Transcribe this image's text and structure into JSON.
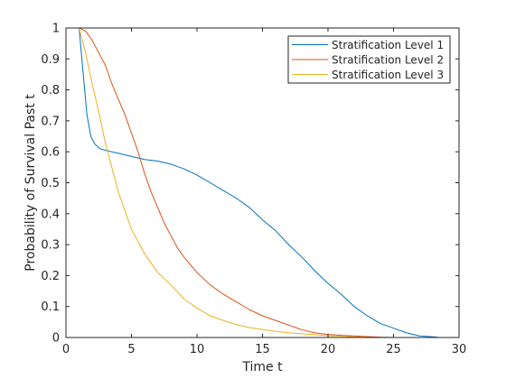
{
  "chart_data": {
    "type": "line",
    "title": "",
    "xlabel": "Time t",
    "ylabel": "Probability of Survival Past t",
    "xlim": [
      0,
      30
    ],
    "ylim": [
      0,
      1
    ],
    "xticks": [
      0,
      5,
      10,
      15,
      20,
      25,
      30
    ],
    "yticks": [
      0,
      0.1,
      0.2,
      0.3,
      0.4,
      0.5,
      0.6,
      0.7,
      0.8,
      0.9,
      1
    ],
    "xtick_labels": [
      "0",
      "5",
      "10",
      "15",
      "20",
      "25",
      "30"
    ],
    "ytick_labels": [
      "0",
      "0.1",
      "0.2",
      "0.3",
      "0.4",
      "0.5",
      "0.6",
      "0.7",
      "0.8",
      "0.9",
      "1"
    ],
    "grid": false,
    "legend": "top-right",
    "series": [
      {
        "name": "Stratification Level 1",
        "color": "#0072BD",
        "x": [
          1,
          1.3,
          1.6,
          1.9,
          2.2,
          2.6,
          3,
          4,
          5,
          6,
          7,
          8,
          9,
          10,
          11,
          12,
          13,
          14,
          15,
          16,
          17,
          18,
          19,
          20,
          21,
          22,
          23,
          24,
          25,
          26,
          27,
          28,
          28.5
        ],
        "y": [
          1,
          0.86,
          0.72,
          0.65,
          0.625,
          0.61,
          0.605,
          0.595,
          0.585,
          0.575,
          0.57,
          0.56,
          0.545,
          0.525,
          0.5,
          0.475,
          0.45,
          0.42,
          0.38,
          0.345,
          0.3,
          0.26,
          0.215,
          0.175,
          0.14,
          0.1,
          0.07,
          0.045,
          0.03,
          0.015,
          0.005,
          0.002,
          0
        ]
      },
      {
        "name": "Stratification Level 2",
        "color": "#D95319",
        "x": [
          1,
          1.5,
          2,
          2.5,
          3,
          3.5,
          4,
          4.5,
          5,
          5.5,
          6,
          6.5,
          7,
          7.5,
          8,
          8.5,
          9,
          10,
          11,
          12,
          13,
          14,
          15,
          16,
          17,
          18,
          19,
          20,
          21,
          22,
          23,
          24,
          25
        ],
        "y": [
          1,
          0.99,
          0.96,
          0.92,
          0.88,
          0.82,
          0.77,
          0.72,
          0.66,
          0.6,
          0.53,
          0.47,
          0.42,
          0.37,
          0.33,
          0.29,
          0.26,
          0.21,
          0.17,
          0.14,
          0.115,
          0.09,
          0.07,
          0.055,
          0.04,
          0.025,
          0.015,
          0.01,
          0.007,
          0.005,
          0.003,
          0.001,
          0
        ]
      },
      {
        "name": "Stratification Level 3",
        "color": "#EDB120",
        "x": [
          1,
          1.5,
          2,
          2.5,
          3,
          3.5,
          4,
          4.5,
          5,
          5.5,
          6,
          6.5,
          7,
          8,
          9,
          10,
          11,
          12,
          13,
          14,
          15,
          16,
          17,
          18,
          19,
          20,
          21,
          22,
          23
        ],
        "y": [
          1,
          0.92,
          0.82,
          0.73,
          0.63,
          0.55,
          0.47,
          0.41,
          0.35,
          0.31,
          0.27,
          0.24,
          0.21,
          0.17,
          0.125,
          0.095,
          0.07,
          0.055,
          0.042,
          0.032,
          0.026,
          0.02,
          0.015,
          0.012,
          0.009,
          0.006,
          0.004,
          0.002,
          0
        ]
      }
    ]
  }
}
